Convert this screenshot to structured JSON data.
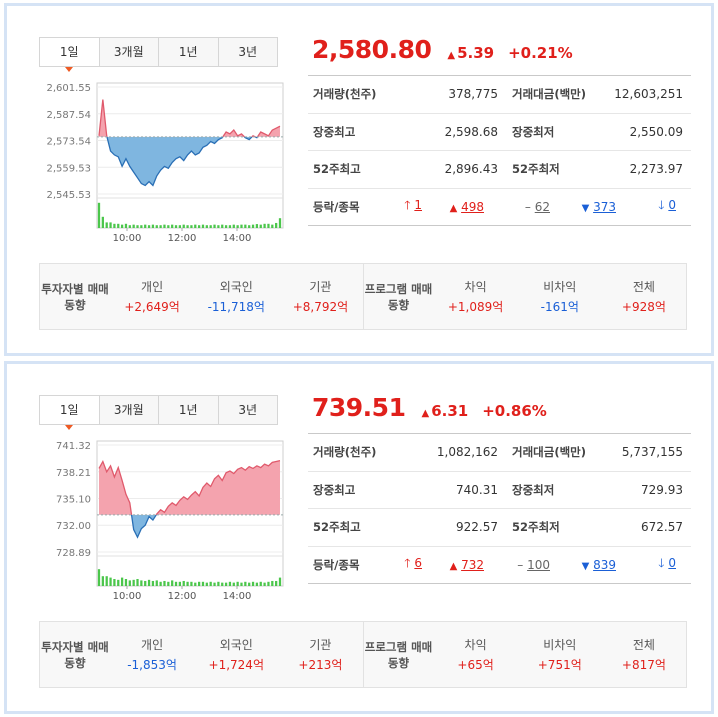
{
  "panels": [
    {
      "tabs": [
        "1일",
        "3개월",
        "1년",
        "3년"
      ],
      "price": "2,580.80",
      "change": "5.39",
      "change_symbol": "▲",
      "change_pct": "+0.21%",
      "stats": {
        "volume_label": "거래량(천주)",
        "volume": "378,775",
        "value_label": "거래대금(백만)",
        "value": "12,603,251",
        "high_label": "장중최고",
        "high": "2,598.68",
        "low_label": "장중최저",
        "low": "2,550.09",
        "high52_label": "52주최고",
        "high52": "2,896.43",
        "low52_label": "52주최저",
        "low52": "2,273.97",
        "breadth_label": "등락/종목",
        "upper_limit": "1",
        "up": "498",
        "flat": "62",
        "down": "373",
        "lower_limit": "0"
      },
      "flows": {
        "investor_title": "투자자별 매매동향",
        "individual_label": "개인",
        "individual": "+2,649억",
        "foreign_label": "외국인",
        "foreign": "-11,718억",
        "institution_label": "기관",
        "institution": "+8,792억",
        "program_title": "프로그램 매매동향",
        "arbitrage_label": "차익",
        "arbitrage": "+1,089억",
        "nonarb_label": "비차익",
        "nonarb": "-161억",
        "total_label": "전체",
        "total": "+928억"
      },
      "chart_data": {
        "type": "area",
        "y_ticks": [
          "2,601.55",
          "2,587.54",
          "2,573.54",
          "2,559.53",
          "2,545.53"
        ],
        "x_ticks": [
          "10:00",
          "12:00",
          "14:00"
        ],
        "baseline": 2575.41,
        "ylim": [
          2545.53,
          2601.55
        ],
        "values": [
          2576,
          2595,
          2576,
          2568,
          2566,
          2565,
          2560,
          2564,
          2560,
          2557,
          2554,
          2551,
          2550,
          2552,
          2550,
          2555,
          2558,
          2560,
          2559,
          2562,
          2564,
          2565,
          2563,
          2566,
          2568,
          2566,
          2567,
          2570,
          2571,
          2573,
          2572,
          2574,
          2575,
          2578,
          2577,
          2579,
          2576,
          2577,
          2575,
          2574,
          2576,
          2575,
          2578,
          2577,
          2576,
          2579,
          2580,
          2581
        ],
        "volume": [
          0.9,
          0.4,
          0.2,
          0.2,
          0.15,
          0.15,
          0.12,
          0.15,
          0.1,
          0.12,
          0.1,
          0.1,
          0.12,
          0.1,
          0.12,
          0.1,
          0.1,
          0.12,
          0.1,
          0.12,
          0.1,
          0.1,
          0.12,
          0.1,
          0.1,
          0.12,
          0.1,
          0.12,
          0.1,
          0.1,
          0.12,
          0.1,
          0.12,
          0.1,
          0.1,
          0.12,
          0.1,
          0.12,
          0.12,
          0.1,
          0.12,
          0.14,
          0.12,
          0.15,
          0.15,
          0.12,
          0.18,
          0.35
        ]
      }
    },
    {
      "tabs": [
        "1일",
        "3개월",
        "1년",
        "3년"
      ],
      "price": "739.51",
      "change": "6.31",
      "change_symbol": "▲",
      "change_pct": "+0.86%",
      "stats": {
        "volume_label": "거래량(천주)",
        "volume": "1,082,162",
        "value_label": "거래대금(백만)",
        "value": "5,737,155",
        "high_label": "장중최고",
        "high": "740.31",
        "low_label": "장중최저",
        "low": "729.93",
        "high52_label": "52주최고",
        "high52": "922.57",
        "low52_label": "52주최저",
        "low52": "672.57",
        "breadth_label": "등락/종목",
        "upper_limit": "6",
        "up": "732",
        "flat": "100",
        "down": "839",
        "lower_limit": "0"
      },
      "flows": {
        "investor_title": "투자자별 매매동향",
        "individual_label": "개인",
        "individual": "-1,853억",
        "foreign_label": "외국인",
        "foreign": "+1,724억",
        "institution_label": "기관",
        "institution": "+213억",
        "program_title": "프로그램 매매동향",
        "arbitrage_label": "차익",
        "arbitrage": "+65억",
        "nonarb_label": "비차익",
        "nonarb": "+751억",
        "total_label": "전체",
        "total": "+817억"
      },
      "chart_data": {
        "type": "area",
        "y_ticks": [
          "741.32",
          "738.21",
          "735.10",
          "732.00",
          "728.89"
        ],
        "x_ticks": [
          "10:00",
          "12:00",
          "14:00"
        ],
        "baseline": 733.2,
        "ylim": [
          728.89,
          741.32
        ],
        "values": [
          738.6,
          739.4,
          738.2,
          738.9,
          737.6,
          738.7,
          737.2,
          735.6,
          734.6,
          731.5,
          730.6,
          731.6,
          732.0,
          733.0,
          732.6,
          733.3,
          733.8,
          733.5,
          734.2,
          734.6,
          734.3,
          734.9,
          735.3,
          735.0,
          735.5,
          735.9,
          735.4,
          736.4,
          736.9,
          736.5,
          737.4,
          737.8,
          737.2,
          738.1,
          738.3,
          738.0,
          738.5,
          738.7,
          738.4,
          738.8,
          738.6,
          738.9,
          738.7,
          739.1,
          738.9,
          739.3,
          739.4,
          739.5
        ],
        "volume": [
          0.6,
          0.35,
          0.35,
          0.3,
          0.25,
          0.22,
          0.3,
          0.25,
          0.2,
          0.22,
          0.25,
          0.2,
          0.18,
          0.22,
          0.18,
          0.2,
          0.15,
          0.18,
          0.15,
          0.2,
          0.15,
          0.15,
          0.18,
          0.15,
          0.15,
          0.12,
          0.15,
          0.15,
          0.12,
          0.15,
          0.12,
          0.15,
          0.12,
          0.12,
          0.15,
          0.12,
          0.15,
          0.12,
          0.15,
          0.12,
          0.15,
          0.12,
          0.15,
          0.12,
          0.15,
          0.18,
          0.18,
          0.3
        ]
      }
    }
  ]
}
